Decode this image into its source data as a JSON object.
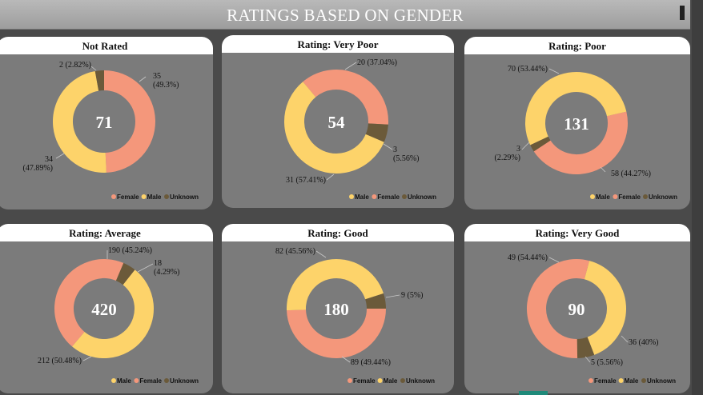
{
  "header": {
    "title": "RATINGS BASED ON GENDER"
  },
  "colors": {
    "Female": "#f4977b",
    "Male": "#fdd36a",
    "Unknown": "#6b5a3a"
  },
  "chart_data": [
    {
      "type": "pie",
      "title": "Not Rated",
      "center": "71",
      "slices": [
        {
          "name": "Female",
          "value": 35,
          "label": "35\n(49.3%)"
        },
        {
          "name": "Male",
          "value": 34,
          "label": "34\n(47.89%)"
        },
        {
          "name": "Unknown",
          "value": 2,
          "label": "2 (2.82%)"
        }
      ],
      "legend": [
        "Female",
        "Male",
        "Unknown"
      ]
    },
    {
      "type": "pie",
      "title": "Rating: Very Poor",
      "center": "54",
      "slices": [
        {
          "name": "Female",
          "value": 20,
          "label": "20 (37.04%)"
        },
        {
          "name": "Unknown",
          "value": 3,
          "label": "3\n(5.56%)"
        },
        {
          "name": "Male",
          "value": 31,
          "label": "31 (57.41%)"
        }
      ],
      "legend": [
        "Male",
        "Female",
        "Unknown"
      ]
    },
    {
      "type": "pie",
      "title": "Rating: Poor",
      "center": "131",
      "slices": [
        {
          "name": "Female",
          "value": 58,
          "label": "58 (44.27%)"
        },
        {
          "name": "Unknown",
          "value": 3,
          "label": "3\n(2.29%)"
        },
        {
          "name": "Male",
          "value": 70,
          "label": "70 (53.44%)"
        }
      ],
      "legend": [
        "Male",
        "Female",
        "Unknown"
      ]
    },
    {
      "type": "pie",
      "title": "Rating: Average",
      "center": "420",
      "slices": [
        {
          "name": "Unknown",
          "value": 18,
          "label": "18\n(4.29%)"
        },
        {
          "name": "Male",
          "value": 212,
          "label": "212 (50.48%)"
        },
        {
          "name": "Female",
          "value": 190,
          "label": "190 (45.24%)"
        }
      ],
      "legend": [
        "Male",
        "Female",
        "Unknown"
      ]
    },
    {
      "type": "pie",
      "title": "Rating: Good",
      "center": "180",
      "slices": [
        {
          "name": "Unknown",
          "value": 9,
          "label": "9 (5%)"
        },
        {
          "name": "Female",
          "value": 89,
          "label": "89 (49.44%)"
        },
        {
          "name": "Male",
          "value": 82,
          "label": "82 (45.56%)"
        }
      ],
      "legend": [
        "Female",
        "Male",
        "Unknown"
      ]
    },
    {
      "type": "pie",
      "title": "Rating: Very Good",
      "center": "90",
      "slices": [
        {
          "name": "Male",
          "value": 36,
          "label": "36 (40%)"
        },
        {
          "name": "Unknown",
          "value": 5,
          "label": "5 (5.56%)"
        },
        {
          "name": "Female",
          "value": 49,
          "label": "49 (54.44%)"
        }
      ],
      "legend": [
        "Female",
        "Male",
        "Unknown"
      ]
    }
  ]
}
